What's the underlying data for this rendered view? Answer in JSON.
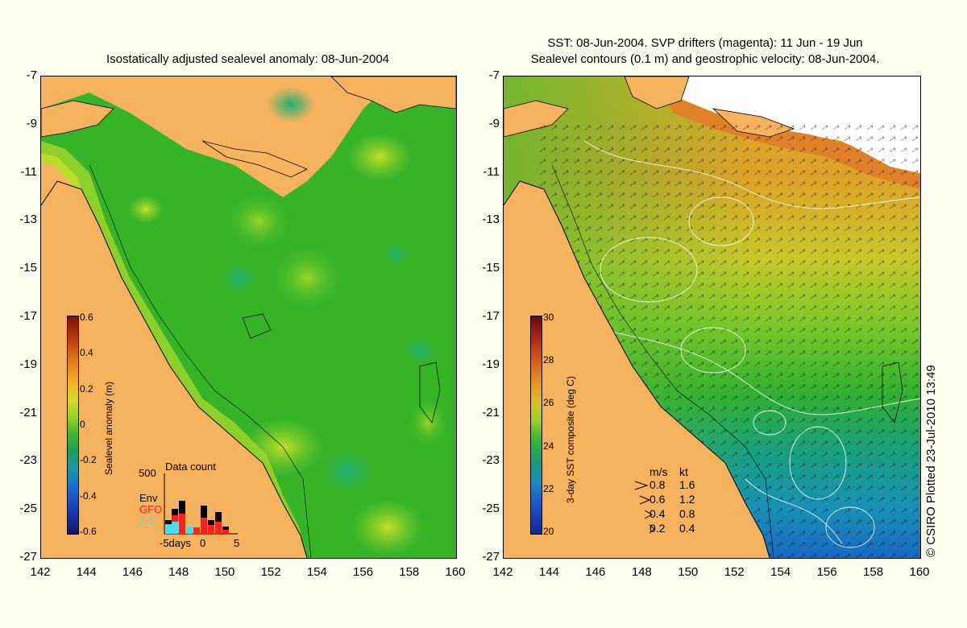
{
  "left_panel": {
    "title": "Isostatically adjusted sealevel anomaly: 08-Jun-2004",
    "y_ticks": [
      "-7",
      "-9",
      "-11",
      "-13",
      "-15",
      "-17",
      "-19",
      "-21",
      "-23",
      "-25",
      "-27"
    ],
    "x_ticks": [
      "142",
      "144",
      "146",
      "148",
      "150",
      "152",
      "154",
      "156",
      "158",
      "160"
    ],
    "colorbar": {
      "label": "Sealevel anomaly (m)",
      "ticks": [
        "0.6",
        "0.4",
        "0.2",
        "0",
        "-0.2",
        "-0.4",
        "-0.6"
      ]
    },
    "data_count": {
      "title": "Data count",
      "max_label": "500",
      "x_labels": [
        "-5days",
        "0",
        "5"
      ],
      "legend": {
        "env": "Env",
        "gfo": "GFO",
        "j1": "J-1"
      },
      "colors": {
        "env": "#000000",
        "gfo": "#ff2020",
        "j1": "#40e0f0"
      }
    }
  },
  "right_panel": {
    "title_line1": "SST: 08-Jun-2004. SVP drifters (magenta): 11 Jun - 19 Jun",
    "title_line2": "Sealevel contours (0.1 m) and geostrophic velocity: 08-Jun-2004.",
    "y_ticks": [
      "-7",
      "-9",
      "-11",
      "-13",
      "-15",
      "-17",
      "-19",
      "-21",
      "-23",
      "-25",
      "-27"
    ],
    "x_ticks": [
      "142",
      "144",
      "146",
      "148",
      "150",
      "152",
      "154",
      "156",
      "158",
      "160"
    ],
    "colorbar": {
      "label": "3-day SST composite (deg C)",
      "ticks": [
        "30",
        "28",
        "26",
        "24",
        "22",
        "20"
      ]
    },
    "velocity_legend": {
      "header_ms": "m/s",
      "header_kt": "kt",
      "rows": [
        {
          "ms": "0.8",
          "kt": "1.6"
        },
        {
          "ms": "0.6",
          "kt": "1.2"
        },
        {
          "ms": "0.4",
          "kt": "0.8"
        },
        {
          "ms": "0.2",
          "kt": "0.4"
        }
      ]
    }
  },
  "credit": "© CSIRO Plotted 23-Jul-2010 13:49",
  "colors": {
    "background": "#fffff0",
    "land": "#f6b25c"
  }
}
